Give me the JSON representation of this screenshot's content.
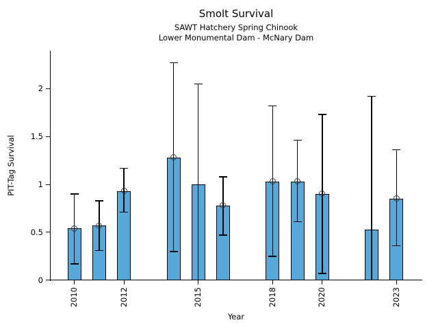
{
  "chart_data": {
    "type": "bar",
    "title": "Smolt Survival",
    "subtitle": "SAWT Hatchery Spring Chinook",
    "subtitle2": "Lower Monumental Dam - McNary Dam",
    "xlabel": "Year",
    "ylabel": "PIT-Tag Survival",
    "xlim": [
      2009,
      2024
    ],
    "ylim": [
      0,
      2.39
    ],
    "x_ticks": [
      2010,
      2012,
      2015,
      2018,
      2020,
      2023
    ],
    "y_ticks": [
      0,
      0.5,
      1,
      1.5,
      2
    ],
    "y_tick_labels": [
      "0",
      "0.5",
      "1",
      "1.5",
      "2"
    ],
    "grid": false,
    "legend_position": "none",
    "bar_width_years": 0.55,
    "colors": {
      "bar_fill": "#56a8d8",
      "bar_edge": "#000000",
      "error_bar": "#000000",
      "marker_edge": "#3a3a3a",
      "text": "#000000"
    },
    "series": [
      {
        "year": 2010,
        "value": 0.54,
        "err_low": 0.17,
        "err_high": 0.9,
        "marker": true
      },
      {
        "year": 2011,
        "value": 0.57,
        "err_low": 0.31,
        "err_high": 0.83,
        "marker": true
      },
      {
        "year": 2012,
        "value": 0.93,
        "err_low": 0.71,
        "err_high": 1.17,
        "marker": true
      },
      {
        "year": 2014,
        "value": 1.28,
        "err_low": 0.3,
        "err_high": 2.27,
        "marker": true
      },
      {
        "year": 2015,
        "value": 1.0,
        "err_low": 0.0,
        "err_high": 2.05,
        "marker": false
      },
      {
        "year": 2016,
        "value": 0.78,
        "err_low": 0.47,
        "err_high": 1.08,
        "marker": true
      },
      {
        "year": 2018,
        "value": 1.03,
        "err_low": 0.25,
        "err_high": 1.82,
        "marker": true
      },
      {
        "year": 2019,
        "value": 1.03,
        "err_low": 0.61,
        "err_high": 1.46,
        "marker": true
      },
      {
        "year": 2020,
        "value": 0.9,
        "err_low": 0.07,
        "err_high": 1.73,
        "marker": true
      },
      {
        "year": 2022,
        "value": 0.53,
        "err_low": 0.0,
        "err_high": 1.92,
        "marker": false
      },
      {
        "year": 2023,
        "value": 0.85,
        "err_low": 0.36,
        "err_high": 1.36,
        "marker": true
      }
    ]
  }
}
